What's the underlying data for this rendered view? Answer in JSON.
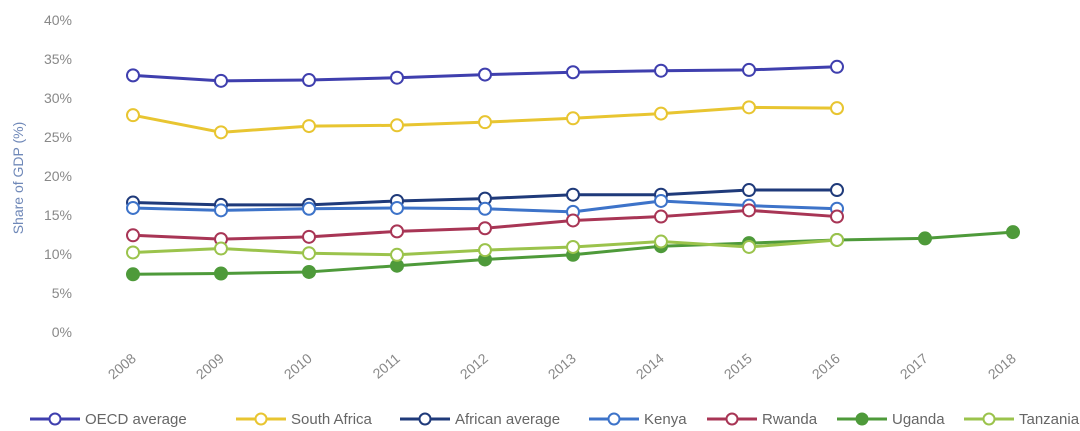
{
  "chart_data": {
    "type": "line",
    "ylabel": "Share of GDP (%)",
    "xlabel": "",
    "ylim": [
      0,
      40
    ],
    "yticks": [
      "0%",
      "5%",
      "10%",
      "15%",
      "20%",
      "25%",
      "30%",
      "35%",
      "40%"
    ],
    "x": [
      "2008",
      "2009",
      "2010",
      "2011",
      "2012",
      "2013",
      "2014",
      "2015",
      "2016",
      "2017",
      "2018"
    ],
    "grid": false,
    "legend_position": "bottom",
    "series": [
      {
        "name": "OECD average",
        "color": "#3f3fae",
        "marker": "open",
        "values": [
          32.9,
          32.2,
          32.3,
          32.6,
          33.0,
          33.3,
          33.5,
          33.6,
          34.0,
          null,
          null
        ]
      },
      {
        "name": "South Africa",
        "color": "#e8c531",
        "marker": "open",
        "values": [
          27.8,
          25.6,
          26.4,
          26.5,
          26.9,
          27.4,
          28.0,
          28.8,
          28.7,
          null,
          null
        ]
      },
      {
        "name": "African average",
        "color": "#1f3a7a",
        "marker": "open",
        "values": [
          16.6,
          16.3,
          16.3,
          16.8,
          17.1,
          17.6,
          17.6,
          18.2,
          18.2,
          null,
          null
        ]
      },
      {
        "name": "Kenya",
        "color": "#3d73c9",
        "marker": "open",
        "values": [
          15.9,
          15.6,
          15.8,
          15.9,
          15.8,
          15.4,
          16.8,
          16.2,
          15.8,
          null,
          null
        ]
      },
      {
        "name": "Rwanda",
        "color": "#a83555",
        "marker": "open",
        "values": [
          12.4,
          11.9,
          12.2,
          12.9,
          13.3,
          14.3,
          14.8,
          15.6,
          14.8,
          null,
          null
        ]
      },
      {
        "name": "Uganda",
        "color": "#4e9a3a",
        "marker": "filled",
        "values": [
          7.4,
          7.5,
          7.7,
          8.5,
          9.3,
          9.9,
          11.0,
          11.4,
          11.8,
          12.0,
          12.8
        ]
      },
      {
        "name": "Tanzania",
        "color": "#9bc34c",
        "marker": "open",
        "values": [
          10.2,
          10.7,
          10.1,
          9.9,
          10.5,
          10.9,
          11.6,
          10.9,
          11.8,
          null,
          null
        ]
      }
    ]
  }
}
